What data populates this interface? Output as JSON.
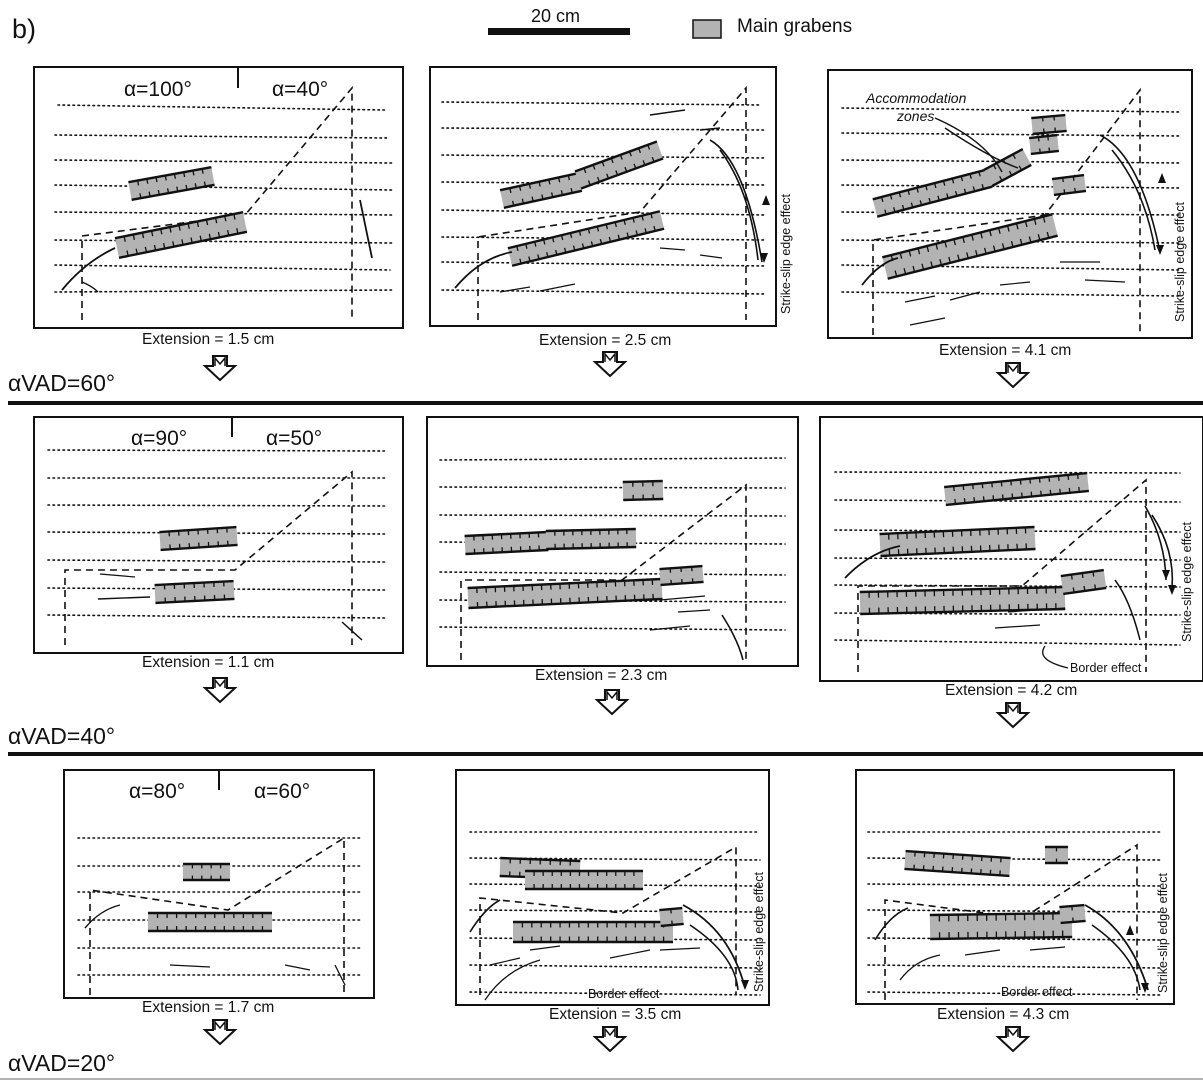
{
  "figure": {
    "panel_label": "b)",
    "scale_bar_label": "20 cm",
    "legend_label": "Main grabens",
    "colors": {
      "graben_fill": "#b3b3b3",
      "line": "#111111"
    },
    "rows": [
      {
        "vad_label": "αVAD=60°",
        "alpha_left": "α=100°",
        "alpha_right": "α=40°",
        "extensions": [
          "Extension = 1.5 cm",
          "Extension = 2.5 cm",
          "Extension = 4.1 cm"
        ]
      },
      {
        "vad_label": "αVAD=40°",
        "alpha_left": "α=90°",
        "alpha_right": "α=50°",
        "extensions": [
          "Extension = 1.1 cm",
          "Extension = 2.3 cm",
          "Extension = 4.2 cm"
        ]
      },
      {
        "vad_label": "αVAD=20°",
        "alpha_left": "α=80°",
        "alpha_right": "α=60°",
        "extensions": [
          "Extension = 1.7 cm",
          "Extension = 3.5 cm",
          "Extension = 4.3 cm"
        ]
      }
    ],
    "annotations": {
      "accommodation_line1": "Accommodation",
      "accommodation_line2": "zones",
      "strike_slip": "Strike-slip edge effect",
      "border_effect": "Border effect"
    }
  }
}
